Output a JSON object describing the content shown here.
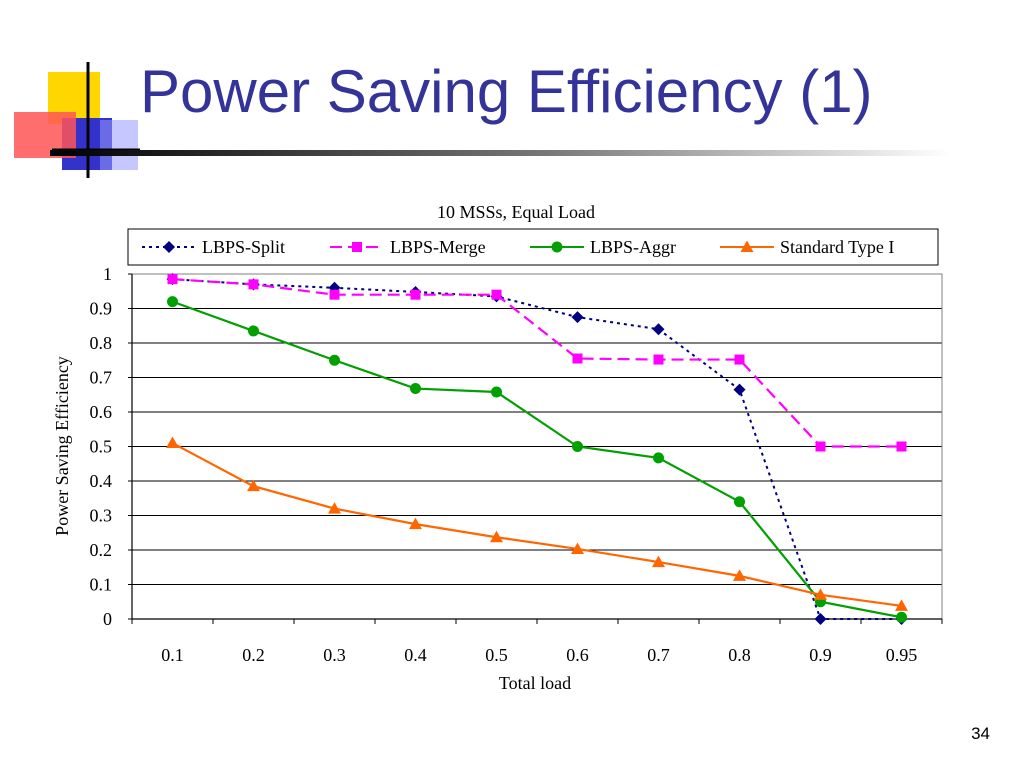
{
  "slide": {
    "title": "Power Saving Efficiency (1)",
    "page_number": "34"
  },
  "chart_data": {
    "type": "line",
    "title": "10 MSSs, Equal Load",
    "xlabel": "Total load",
    "ylabel": "Power Saving Efficiency",
    "categories": [
      "0.1",
      "0.2",
      "0.3",
      "0.4",
      "0.5",
      "0.6",
      "0.7",
      "0.8",
      "0.9",
      "0.95"
    ],
    "y_ticks": [
      "0",
      "0.1",
      "0.2",
      "0.3",
      "0.4",
      "0.5",
      "0.6",
      "0.7",
      "0.8",
      "0.9",
      "1"
    ],
    "ylim": [
      0,
      1
    ],
    "grid": "horizontal",
    "legend": "top",
    "series": [
      {
        "name": "LBPS-Split",
        "color": "#000080",
        "marker": "diamond",
        "line": "dotted",
        "values": [
          0.985,
          0.97,
          0.96,
          0.948,
          0.935,
          0.875,
          0.84,
          0.665,
          0.0,
          0.0
        ]
      },
      {
        "name": "LBPS-Merge",
        "color": "#FF00FF",
        "marker": "square",
        "line": "dashed",
        "values": [
          0.985,
          0.97,
          0.94,
          0.94,
          0.94,
          0.755,
          0.752,
          0.752,
          0.5,
          0.5
        ]
      },
      {
        "name": "LBPS-Aggr",
        "color": "#00A000",
        "marker": "circle",
        "line": "solid",
        "values": [
          0.92,
          0.835,
          0.75,
          0.668,
          0.658,
          0.5,
          0.467,
          0.34,
          0.05,
          0.005
        ]
      },
      {
        "name": "Standard Type I",
        "color": "#FF6600",
        "marker": "triangle",
        "line": "solid",
        "values": [
          0.51,
          0.385,
          0.32,
          0.275,
          0.237,
          0.203,
          0.165,
          0.125,
          0.07,
          0.038
        ]
      }
    ]
  }
}
